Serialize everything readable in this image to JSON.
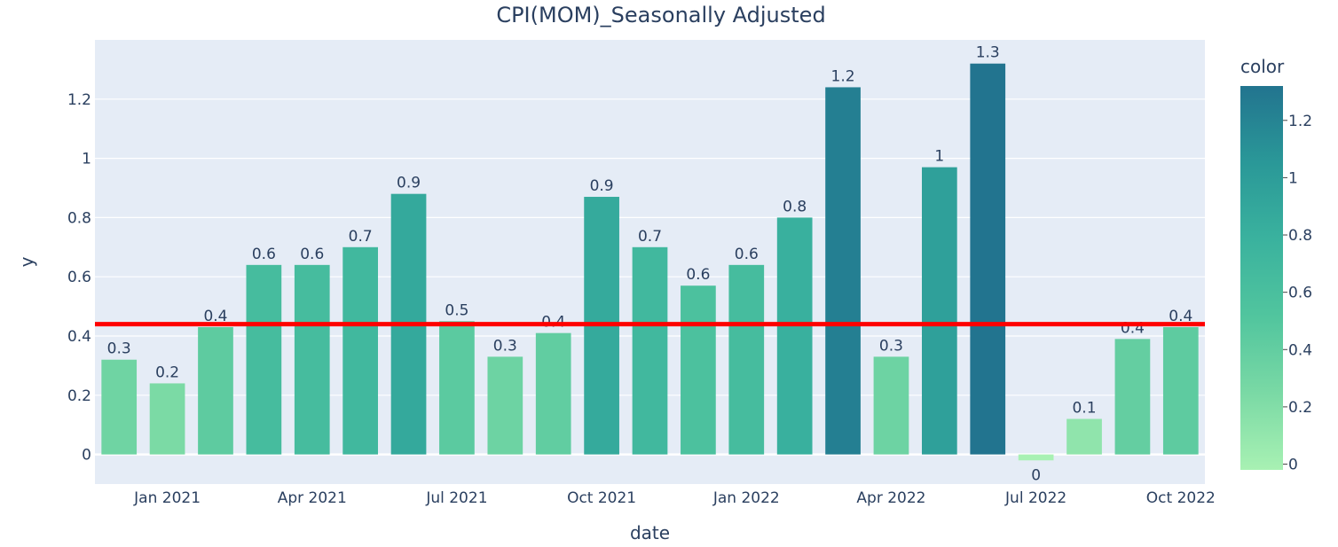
{
  "chart_data": {
    "type": "bar",
    "title": "CPI(MOM)_Seasonally Adjusted",
    "xlabel": "date",
    "ylabel": "y",
    "x": [
      "2020-12",
      "2021-01",
      "2021-02",
      "2021-03",
      "2021-04",
      "2021-05",
      "2021-06",
      "2021-07",
      "2021-08",
      "2021-09",
      "2021-10",
      "2021-11",
      "2021-12",
      "2022-01",
      "2022-02",
      "2022-03",
      "2022-04",
      "2022-05",
      "2022-06",
      "2022-07",
      "2022-08",
      "2022-09",
      "2022-10"
    ],
    "values": [
      0.32,
      0.24,
      0.43,
      0.64,
      0.64,
      0.7,
      0.88,
      0.45,
      0.33,
      0.41,
      0.87,
      0.7,
      0.57,
      0.64,
      0.8,
      1.24,
      0.33,
      0.97,
      1.32,
      -0.02,
      0.12,
      0.39,
      0.43
    ],
    "bar_labels": [
      "0.3",
      "0.2",
      "0.4",
      "0.6",
      "0.6",
      "0.7",
      "0.9",
      "0.5",
      "0.3",
      "0.4",
      "0.9",
      "0.7",
      "0.6",
      "0.6",
      "0.8",
      "1.2",
      "0.3",
      "1",
      "1.3",
      "0",
      "0.1",
      "0.4",
      "0.4"
    ],
    "x_tick_labels": [
      {
        "x": "2021-01",
        "label": "Jan 2021"
      },
      {
        "x": "2021-04",
        "label": "Apr 2021"
      },
      {
        "x": "2021-07",
        "label": "Jul 2021"
      },
      {
        "x": "2021-10",
        "label": "Oct 2021"
      },
      {
        "x": "2022-01",
        "label": "Jan 2022"
      },
      {
        "x": "2022-04",
        "label": "Apr 2022"
      },
      {
        "x": "2022-07",
        "label": "Jul 2022"
      },
      {
        "x": "2022-10",
        "label": "Oct 2022"
      }
    ],
    "y_ticks": [
      0,
      0.2,
      0.4,
      0.6,
      0.8,
      1,
      1.2
    ],
    "ylim": [
      -0.1,
      1.4
    ],
    "reference_line": {
      "y": 0.44,
      "color": "#ff0000"
    },
    "colorbar": {
      "title": "color",
      "range": [
        -0.02,
        1.32
      ],
      "ticks": [
        0,
        0.2,
        0.4,
        0.6,
        0.8,
        1,
        1.2
      ],
      "colors": [
        "#a8f1b3",
        "#7ad9a5",
        "#51c59e",
        "#3ab29e",
        "#2a9898",
        "#22748f"
      ]
    },
    "plot_bg": "#e5ecf6",
    "grid": true,
    "legend": "right"
  }
}
